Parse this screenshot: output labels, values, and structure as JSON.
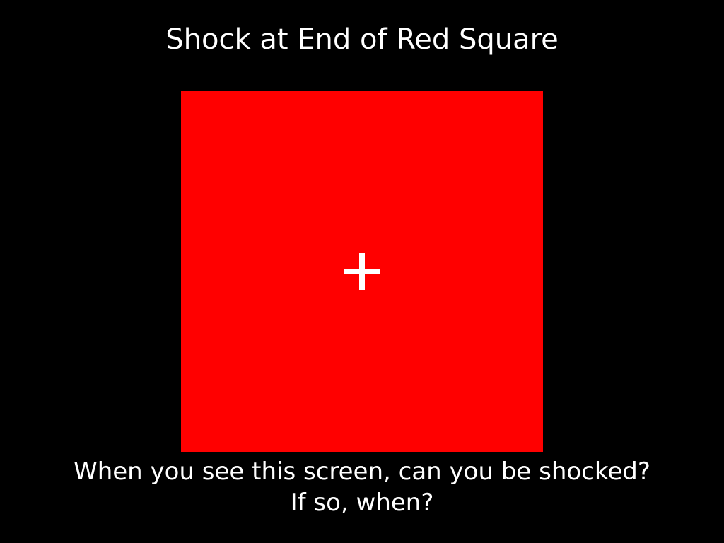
{
  "slide": {
    "title": "Shock at End of Red Square",
    "background_color": "#000000",
    "square_color": "#ff0000",
    "fixation_icon": "plus-icon",
    "question_line1": "When you see this screen, can you be shocked?",
    "question_line2": "If so, when?"
  }
}
